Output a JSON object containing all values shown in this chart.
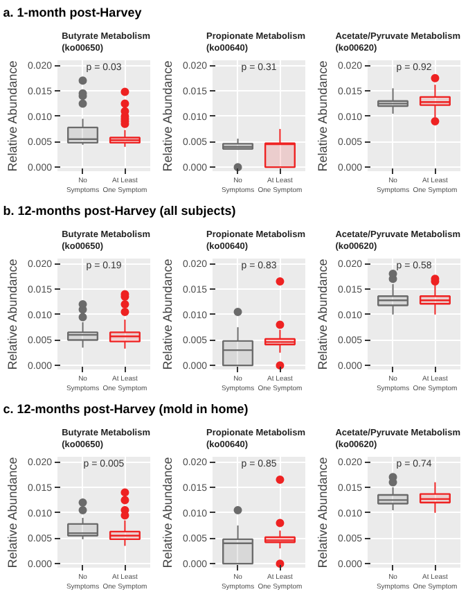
{
  "chart_data": [
    {
      "type": "other",
      "title": "a. 1-month post-Harvey"
    },
    {
      "type": "box",
      "title": "Butyrate Metabolism\n(ko00650)",
      "ylabel": "Relative Abundance",
      "categories": [
        "No\nSymptoms",
        "At Least\nOne Symptom"
      ],
      "colors": [
        "#6b6b6b",
        "#ee2222"
      ],
      "ylim": [
        -0.0008,
        0.021
      ],
      "yticks": [
        {
          "value": 0,
          "label": "0.000"
        },
        {
          "value": 0.005,
          "label": "0.005"
        },
        {
          "value": 0.01,
          "label": "0.010"
        },
        {
          "value": 0.015,
          "label": "0.015"
        },
        {
          "value": 0.02,
          "label": "0.020"
        }
      ],
      "grid": true,
      "annotations": [
        "p = 0.03"
      ],
      "boxes": [
        {
          "low": 0.0044,
          "q1": 0.0048,
          "median": 0.0055,
          "q3": 0.0078,
          "high": 0.0095,
          "outliers": [
            0.0125,
            0.014,
            0.0145,
            0.017
          ]
        },
        {
          "low": 0.004,
          "q1": 0.0048,
          "median": 0.0053,
          "q3": 0.0058,
          "high": 0.0073,
          "outliers": [
            0.0085,
            0.009,
            0.0095,
            0.01,
            0.011,
            0.0125,
            0.0148
          ]
        }
      ]
    },
    {
      "type": "box",
      "title": "Propionate Metabolism\n(ko00640)",
      "ylabel": "Relative Abundance",
      "categories": [
        "No\nSymptoms",
        "At Least\nOne Symptom"
      ],
      "colors": [
        "#6b6b6b",
        "#ee2222"
      ],
      "ylim": [
        -0.0008,
        0.021
      ],
      "yticks": [
        {
          "value": 0,
          "label": "0.000"
        },
        {
          "value": 0.005,
          "label": "0.005"
        },
        {
          "value": 0.01,
          "label": "0.010"
        },
        {
          "value": 0.015,
          "label": "0.015"
        },
        {
          "value": 0.02,
          "label": "0.020"
        }
      ],
      "grid": true,
      "annotations": [
        "p = 0.31"
      ],
      "boxes": [
        {
          "low": 0.0034,
          "q1": 0.0036,
          "median": 0.004,
          "q3": 0.0046,
          "high": 0.0056,
          "outliers": [
            0.0
          ]
        },
        {
          "low": 0.0,
          "q1": 0.0,
          "median": 0.0045,
          "q3": 0.0047,
          "high": 0.0075
        }
      ]
    },
    {
      "type": "box",
      "title": "Acetate/Pyruvate Metabolism\n(ko00620)",
      "ylabel": "Relative Abundance",
      "categories": [
        "No\nSymptoms",
        "At Least\nOne Symptom"
      ],
      "colors": [
        "#6b6b6b",
        "#ee2222"
      ],
      "ylim": [
        -0.0008,
        0.021
      ],
      "yticks": [
        {
          "value": 0,
          "label": "0.000"
        },
        {
          "value": 0.005,
          "label": "0.005"
        },
        {
          "value": 0.01,
          "label": "0.010"
        },
        {
          "value": 0.015,
          "label": "0.015"
        },
        {
          "value": 0.02,
          "label": "0.020"
        }
      ],
      "grid": true,
      "annotations": [
        "p = 0.92"
      ],
      "boxes": [
        {
          "low": 0.0105,
          "q1": 0.012,
          "median": 0.0125,
          "q3": 0.013,
          "high": 0.0155
        },
        {
          "low": 0.0098,
          "q1": 0.0122,
          "median": 0.0128,
          "q3": 0.0138,
          "high": 0.0162,
          "outliers": [
            0.009,
            0.0175
          ]
        }
      ]
    },
    {
      "type": "other",
      "title": "b. 12-months post-Harvey (all subjects)"
    },
    {
      "type": "box",
      "title": "Butyrate Metabolism\n(ko00650)",
      "ylabel": "Relative Abundance",
      "categories": [
        "No\nSymptoms",
        "At Least\nOne Symptom"
      ],
      "colors": [
        "#6b6b6b",
        "#ee2222"
      ],
      "ylim": [
        -0.0008,
        0.021
      ],
      "yticks": [
        {
          "value": 0,
          "label": "0.000"
        },
        {
          "value": 0.005,
          "label": "0.005"
        },
        {
          "value": 0.01,
          "label": "0.010"
        },
        {
          "value": 0.015,
          "label": "0.015"
        },
        {
          "value": 0.02,
          "label": "0.020"
        }
      ],
      "grid": true,
      "annotations": [
        "p = 0.19"
      ],
      "boxes": [
        {
          "low": 0.0035,
          "q1": 0.005,
          "median": 0.006,
          "q3": 0.0065,
          "high": 0.0085,
          "outliers": [
            0.0095,
            0.011,
            0.012
          ]
        },
        {
          "low": 0.0033,
          "q1": 0.0047,
          "median": 0.0057,
          "q3": 0.0065,
          "high": 0.009,
          "outliers": [
            0.0105,
            0.012,
            0.0135,
            0.014
          ]
        }
      ]
    },
    {
      "type": "box",
      "title": "Propionate Metabolism\n(ko00640)",
      "ylabel": "Relative Abundance",
      "categories": [
        "No\nSymptoms",
        "At Least\nOne Symptom"
      ],
      "colors": [
        "#6b6b6b",
        "#ee2222"
      ],
      "ylim": [
        -0.0008,
        0.021
      ],
      "yticks": [
        {
          "value": 0,
          "label": "0.000"
        },
        {
          "value": 0.005,
          "label": "0.005"
        },
        {
          "value": 0.01,
          "label": "0.010"
        },
        {
          "value": 0.015,
          "label": "0.015"
        },
        {
          "value": 0.02,
          "label": "0.020"
        }
      ],
      "grid": true,
      "annotations": [
        "p = 0.83"
      ],
      "boxes": [
        {
          "low": 0.0,
          "q1": 0.0,
          "median": 0.003,
          "q3": 0.0048,
          "high": 0.0075,
          "outliers": [
            0.0105
          ]
        },
        {
          "low": 0.0025,
          "q1": 0.0041,
          "median": 0.0046,
          "q3": 0.0052,
          "high": 0.007,
          "outliers": [
            0.0,
            0.008,
            0.0165
          ]
        }
      ]
    },
    {
      "type": "box",
      "title": "Acetate/Pyruvate Metabolism\n(ko00620)",
      "ylabel": "Relative Abundance",
      "categories": [
        "No\nSymptoms",
        "At Least\nOne Symptom"
      ],
      "colors": [
        "#6b6b6b",
        "#ee2222"
      ],
      "ylim": [
        -0.0008,
        0.021
      ],
      "yticks": [
        {
          "value": 0,
          "label": "0.000"
        },
        {
          "value": 0.005,
          "label": "0.005"
        },
        {
          "value": 0.01,
          "label": "0.010"
        },
        {
          "value": 0.015,
          "label": "0.015"
        },
        {
          "value": 0.02,
          "label": "0.020"
        }
      ],
      "grid": true,
      "annotations": [
        "p = 0.58"
      ],
      "boxes": [
        {
          "low": 0.01,
          "q1": 0.0118,
          "median": 0.0128,
          "q3": 0.0136,
          "high": 0.016,
          "outliers": [
            0.017,
            0.018
          ]
        },
        {
          "low": 0.01,
          "q1": 0.0121,
          "median": 0.0128,
          "q3": 0.0136,
          "high": 0.0158,
          "outliers": [
            0.0165,
            0.017
          ]
        }
      ]
    },
    {
      "type": "other",
      "title": "c. 12-months post-Harvey (mold in home)"
    },
    {
      "type": "box",
      "title": "Butyrate Metabolism\n(ko00650)",
      "ylabel": "Relative Abundance",
      "categories": [
        "No\nSymptoms",
        "At Least\nOne Symptom"
      ],
      "colors": [
        "#6b6b6b",
        "#ee2222"
      ],
      "ylim": [
        -0.0008,
        0.021
      ],
      "yticks": [
        {
          "value": 0,
          "label": "0.000"
        },
        {
          "value": 0.005,
          "label": "0.005"
        },
        {
          "value": 0.01,
          "label": "0.010"
        },
        {
          "value": 0.015,
          "label": "0.015"
        },
        {
          "value": 0.02,
          "label": "0.020"
        }
      ],
      "grid": true,
      "annotations": [
        "p = 0.005"
      ],
      "boxes": [
        {
          "low": 0.0048,
          "q1": 0.0055,
          "median": 0.006,
          "q3": 0.0078,
          "high": 0.009,
          "outliers": [
            0.0105,
            0.012
          ]
        },
        {
          "low": 0.0035,
          "q1": 0.0048,
          "median": 0.0055,
          "q3": 0.0063,
          "high": 0.0085,
          "outliers": [
            0.0095,
            0.0105,
            0.0125,
            0.014
          ]
        }
      ]
    },
    {
      "type": "box",
      "title": "Propionate Metabolism\n(ko00640)",
      "ylabel": "Relative Abundance",
      "categories": [
        "No\nSymptoms",
        "At Least\nOne Symptom"
      ],
      "colors": [
        "#6b6b6b",
        "#ee2222"
      ],
      "ylim": [
        -0.0008,
        0.021
      ],
      "yticks": [
        {
          "value": 0,
          "label": "0.000"
        },
        {
          "value": 0.005,
          "label": "0.005"
        },
        {
          "value": 0.01,
          "label": "0.010"
        },
        {
          "value": 0.015,
          "label": "0.015"
        },
        {
          "value": 0.02,
          "label": "0.020"
        }
      ],
      "grid": true,
      "annotations": [
        "p = 0.85"
      ],
      "boxes": [
        {
          "low": 0.0,
          "q1": 0.0,
          "median": 0.004,
          "q3": 0.0048,
          "high": 0.0075,
          "outliers": [
            0.0105
          ]
        },
        {
          "low": 0.003,
          "q1": 0.0042,
          "median": 0.0046,
          "q3": 0.0052,
          "high": 0.0065,
          "outliers": [
            0.0,
            0.008,
            0.0165
          ]
        }
      ]
    },
    {
      "type": "box",
      "title": "Acetate/Pyruvate Metabolism\n(ko00620)",
      "ylabel": "Relative Abundance",
      "categories": [
        "No\nSymptoms",
        "At Least\nOne Symptom"
      ],
      "colors": [
        "#6b6b6b",
        "#ee2222"
      ],
      "ylim": [
        -0.0008,
        0.021
      ],
      "yticks": [
        {
          "value": 0,
          "label": "0.000"
        },
        {
          "value": 0.005,
          "label": "0.005"
        },
        {
          "value": 0.01,
          "label": "0.010"
        },
        {
          "value": 0.015,
          "label": "0.015"
        },
        {
          "value": 0.02,
          "label": "0.020"
        }
      ],
      "grid": true,
      "annotations": [
        "p = 0.74"
      ],
      "boxes": [
        {
          "low": 0.0105,
          "q1": 0.0118,
          "median": 0.0125,
          "q3": 0.0135,
          "high": 0.015,
          "outliers": [
            0.016,
            0.017
          ]
        },
        {
          "low": 0.01,
          "q1": 0.012,
          "median": 0.0127,
          "q3": 0.0137,
          "high": 0.016
        }
      ]
    }
  ]
}
